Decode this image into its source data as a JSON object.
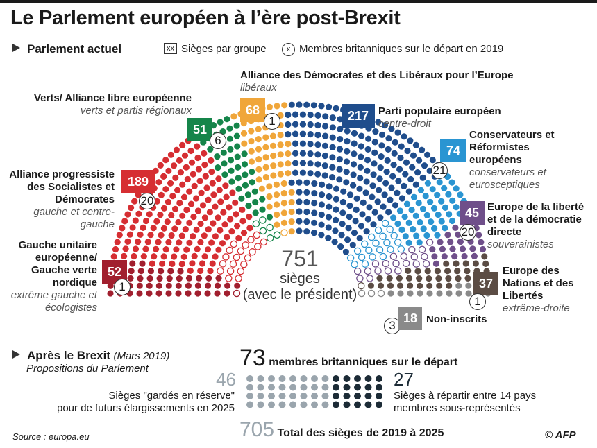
{
  "title": "Le Parlement européen à l’ère post-Brexit",
  "current_section": "Parlement actuel",
  "legend": {
    "seats_marker": "xx",
    "seats_label": "Sièges par groupe",
    "uk_marker": "x",
    "uk_label": "Membres britanniques sur le départ en 2019"
  },
  "colors": {
    "gue": "#a11f2e",
    "sd": "#d62e32",
    "verts": "#15854a",
    "alde": "#f0a63a",
    "ppe": "#1f4d8c",
    "ecr": "#2a95d2",
    "efdd": "#6f4f8a",
    "enl": "#5b4c44",
    "ni": "#8a8a8a",
    "reserve": "#9aa5ad",
    "redistribute": "#1c2b36"
  },
  "groups": [
    {
      "id": "gue",
      "name": "Gauche unitaire européenne/ Gauche verte nordique",
      "subtitle": "extrême gauche et écologistes",
      "seats": "52",
      "uk": "1"
    },
    {
      "id": "sd",
      "name": "Alliance progressiste des Socialistes et Démocrates",
      "subtitle": "gauche et centre-gauche",
      "seats": "189",
      "uk": "20"
    },
    {
      "id": "verts",
      "name": "Verts/ Alliance libre européenne",
      "subtitle": "verts et partis régionaux",
      "seats": "51",
      "uk": "6"
    },
    {
      "id": "alde",
      "name": "Alliance des Démocrates et des Libéraux pour l’Europe",
      "subtitle": "libéraux",
      "seats": "68",
      "uk": "1"
    },
    {
      "id": "ppe",
      "name": "Parti populaire européen",
      "subtitle": "centre-droit",
      "seats": "217",
      "uk": ""
    },
    {
      "id": "ecr",
      "name": "Conservateurs et Réformistes européens",
      "subtitle": "conservateurs et eurosceptiques",
      "seats": "74",
      "uk": "21"
    },
    {
      "id": "efdd",
      "name": "Europe de la liberté et de la démocratie directe",
      "subtitle": "souverainistes",
      "seats": "45",
      "uk": "20"
    },
    {
      "id": "enl",
      "name": "Europe des Nations et des Libertés",
      "subtitle": "extrême-droite",
      "seats": "37",
      "uk": "1"
    },
    {
      "id": "ni",
      "name": "Non-inscrits",
      "subtitle": "",
      "seats": "18",
      "uk": "3"
    }
  ],
  "center": {
    "total": "751",
    "label1": "sièges",
    "label2": "(avec le président)"
  },
  "after": {
    "heading": "Après le Brexit",
    "date": "(Mars 2019)",
    "sub": "Propositions du Parlement",
    "uk_total": "73",
    "uk_label": "membres britanniques sur le départ",
    "reserve_num": "46",
    "reserve_label1": "Sièges \"gardés en réserve\"",
    "reserve_label2": "pour de futurs élargissements en 2025",
    "redistrib_num": "27",
    "redistrib_label1": "Sièges à répartir entre 14 pays",
    "redistrib_label2": "membres sous-représentés",
    "total_num": "705",
    "total_label": "Total  des sièges de 2019 à 2025"
  },
  "source": "Source : europa.eu",
  "credit": "© AFP",
  "chart_data": {
    "type": "hemicycle",
    "title": "Le Parlement européen à l’ère post-Brexit",
    "categories": [
      "GUE/NGL",
      "S&D",
      "Verts/ALE",
      "ADLE",
      "PPE",
      "ECR",
      "EFDD",
      "ENL",
      "NI"
    ],
    "series": [
      {
        "name": "Sièges par groupe",
        "values": [
          52,
          189,
          51,
          68,
          217,
          74,
          45,
          37,
          18
        ]
      },
      {
        "name": "Membres britanniques sur le départ en 2019",
        "values": [
          1,
          20,
          6,
          1,
          0,
          21,
          20,
          1,
          3
        ]
      }
    ],
    "total_seats": 751,
    "after_brexit": {
      "uk_leaving": 73,
      "reserved": 46,
      "redistributed": 27,
      "total_2019_2025": 705
    }
  }
}
